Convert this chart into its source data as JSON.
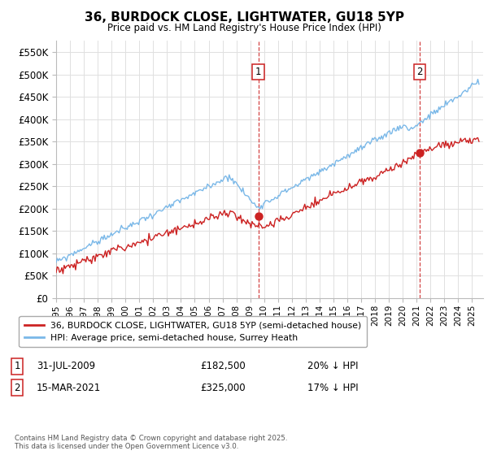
{
  "title": "36, BURDOCK CLOSE, LIGHTWATER, GU18 5YP",
  "subtitle": "Price paid vs. HM Land Registry's House Price Index (HPI)",
  "ylim": [
    0,
    575000
  ],
  "yticks": [
    0,
    50000,
    100000,
    150000,
    200000,
    250000,
    300000,
    350000,
    400000,
    450000,
    500000,
    550000
  ],
  "ytick_labels": [
    "£0",
    "£50K",
    "£100K",
    "£150K",
    "£200K",
    "£250K",
    "£300K",
    "£350K",
    "£400K",
    "£450K",
    "£500K",
    "£550K"
  ],
  "hpi_color": "#7ab8e8",
  "price_color": "#cc2222",
  "vline_color": "#cc2222",
  "background_color": "#ffffff",
  "grid_color": "#e0e0e0",
  "sale1_x": 2009.58,
  "sale1_y": 182500,
  "sale1_label": "1",
  "sale2_x": 2021.21,
  "sale2_y": 325000,
  "sale2_label": "2",
  "legend_line1": "36, BURDOCK CLOSE, LIGHTWATER, GU18 5YP (semi-detached house)",
  "legend_line2": "HPI: Average price, semi-detached house, Surrey Heath",
  "annotation1_num": "1",
  "annotation1_date": "31-JUL-2009",
  "annotation1_price": "£182,500",
  "annotation1_pct": "20% ↓ HPI",
  "annotation2_num": "2",
  "annotation2_date": "15-MAR-2021",
  "annotation2_price": "£325,000",
  "annotation2_pct": "17% ↓ HPI",
  "footnote": "Contains HM Land Registry data © Crown copyright and database right 2025.\nThis data is licensed under the Open Government Licence v3.0.",
  "xmin": 1995,
  "xmax": 2025.8
}
